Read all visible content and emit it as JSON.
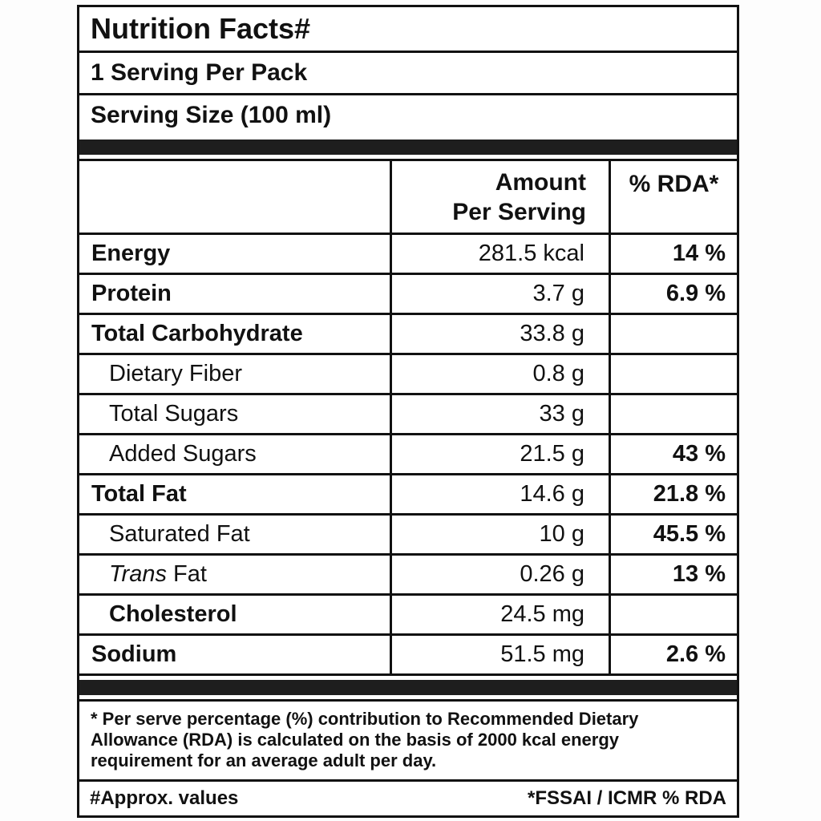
{
  "title": "Nutrition Facts#",
  "servings_line": "1 Serving Per Pack",
  "serving_size_line": "Serving Size (100 ml)",
  "table_header": {
    "amount_line1": "Amount",
    "amount_line2": "Per Serving",
    "rda": "% RDA*"
  },
  "rows": [
    {
      "label": "Energy",
      "italic_prefix": "",
      "amount": "281.5 kcal",
      "rda": "14 %",
      "bold": true,
      "indent": false
    },
    {
      "label": "Protein",
      "italic_prefix": "",
      "amount": "3.7 g",
      "rda": "6.9 %",
      "bold": true,
      "indent": false
    },
    {
      "label": "Total Carbohydrate",
      "italic_prefix": "",
      "amount": "33.8 g",
      "rda": "",
      "bold": true,
      "indent": false
    },
    {
      "label": "Dietary Fiber",
      "italic_prefix": "",
      "amount": "0.8 g",
      "rda": "",
      "bold": false,
      "indent": true
    },
    {
      "label": "Total Sugars",
      "italic_prefix": "",
      "amount": "33 g",
      "rda": "",
      "bold": false,
      "indent": true
    },
    {
      "label": "Added Sugars",
      "italic_prefix": "",
      "amount": "21.5 g",
      "rda": "43 %",
      "bold": false,
      "indent": true
    },
    {
      "label": "Total Fat",
      "italic_prefix": "",
      "amount": "14.6 g",
      "rda": "21.8 %",
      "bold": true,
      "indent": false
    },
    {
      "label": "Saturated Fat",
      "italic_prefix": "",
      "amount": "10 g",
      "rda": "45.5 %",
      "bold": false,
      "indent": true
    },
    {
      "label": " Fat",
      "italic_prefix": "Trans",
      "amount": "0.26 g",
      "rda": "13 %",
      "bold": false,
      "indent": true
    },
    {
      "label": "Cholesterol",
      "italic_prefix": "",
      "amount": "24.5 mg",
      "rda": "",
      "bold": true,
      "indent": true
    },
    {
      "label": "Sodium",
      "italic_prefix": "",
      "amount": "51.5 mg",
      "rda": "2.6 %",
      "bold": true,
      "indent": false
    }
  ],
  "footnote": "* Per serve percentage (%) contribution to Recommended Dietary Allowance (RDA) is calculated on the basis of 2000 kcal energy requirement for an average adult per day.",
  "bottom_left": "#Approx. values",
  "bottom_right": "*FSSAI / ICMR % RDA",
  "colors": {
    "border": "#111111",
    "separator_bar": "#1e1e1e",
    "text": "#111111",
    "background": "#ffffff"
  }
}
